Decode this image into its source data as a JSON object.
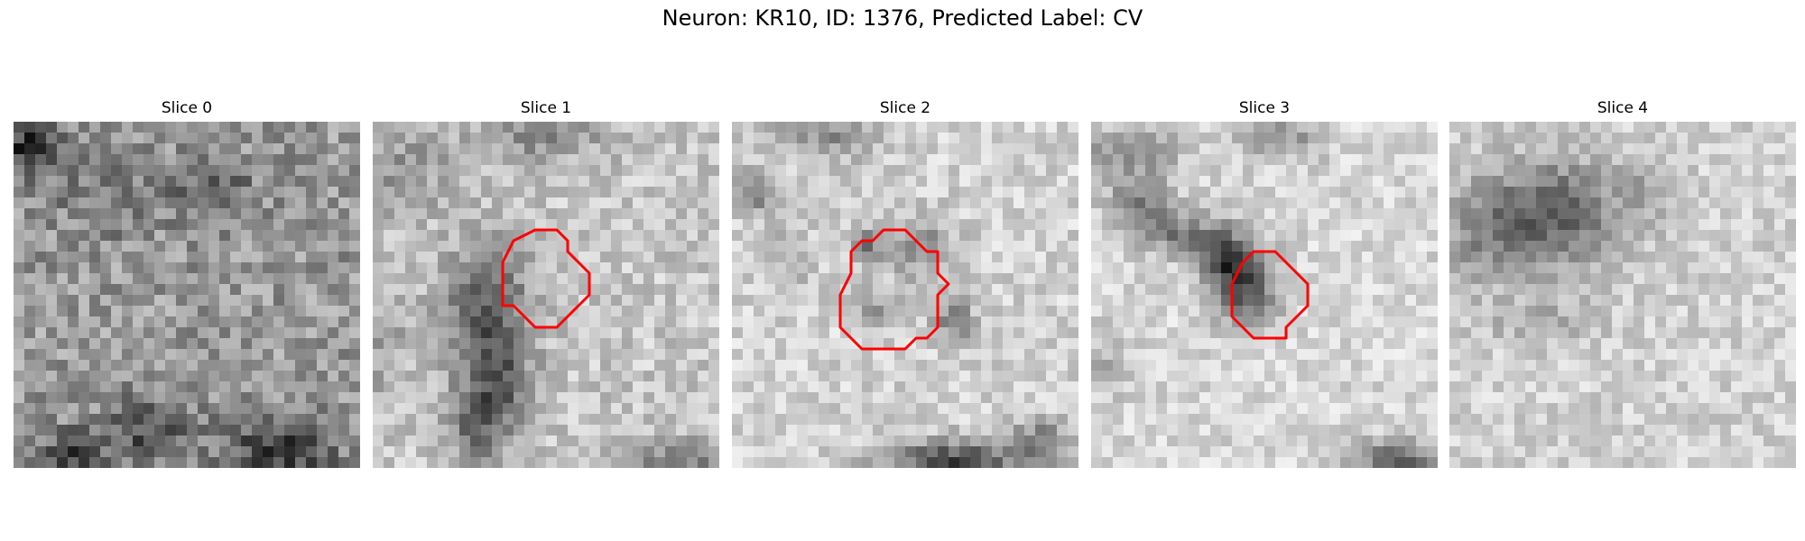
{
  "figure": {
    "title": "Neuron: KR10, ID: 1376, Predicted Label: CV",
    "contour_color": "#ff0000",
    "colormap": "gray"
  },
  "panels": [
    {
      "title": "Slice 0",
      "has_contour": false
    },
    {
      "title": "Slice 1",
      "has_contour": true
    },
    {
      "title": "Slice 2",
      "has_contour": true
    },
    {
      "title": "Slice 3",
      "has_contour": true
    },
    {
      "title": "Slice 4",
      "has_contour": false
    }
  ]
}
